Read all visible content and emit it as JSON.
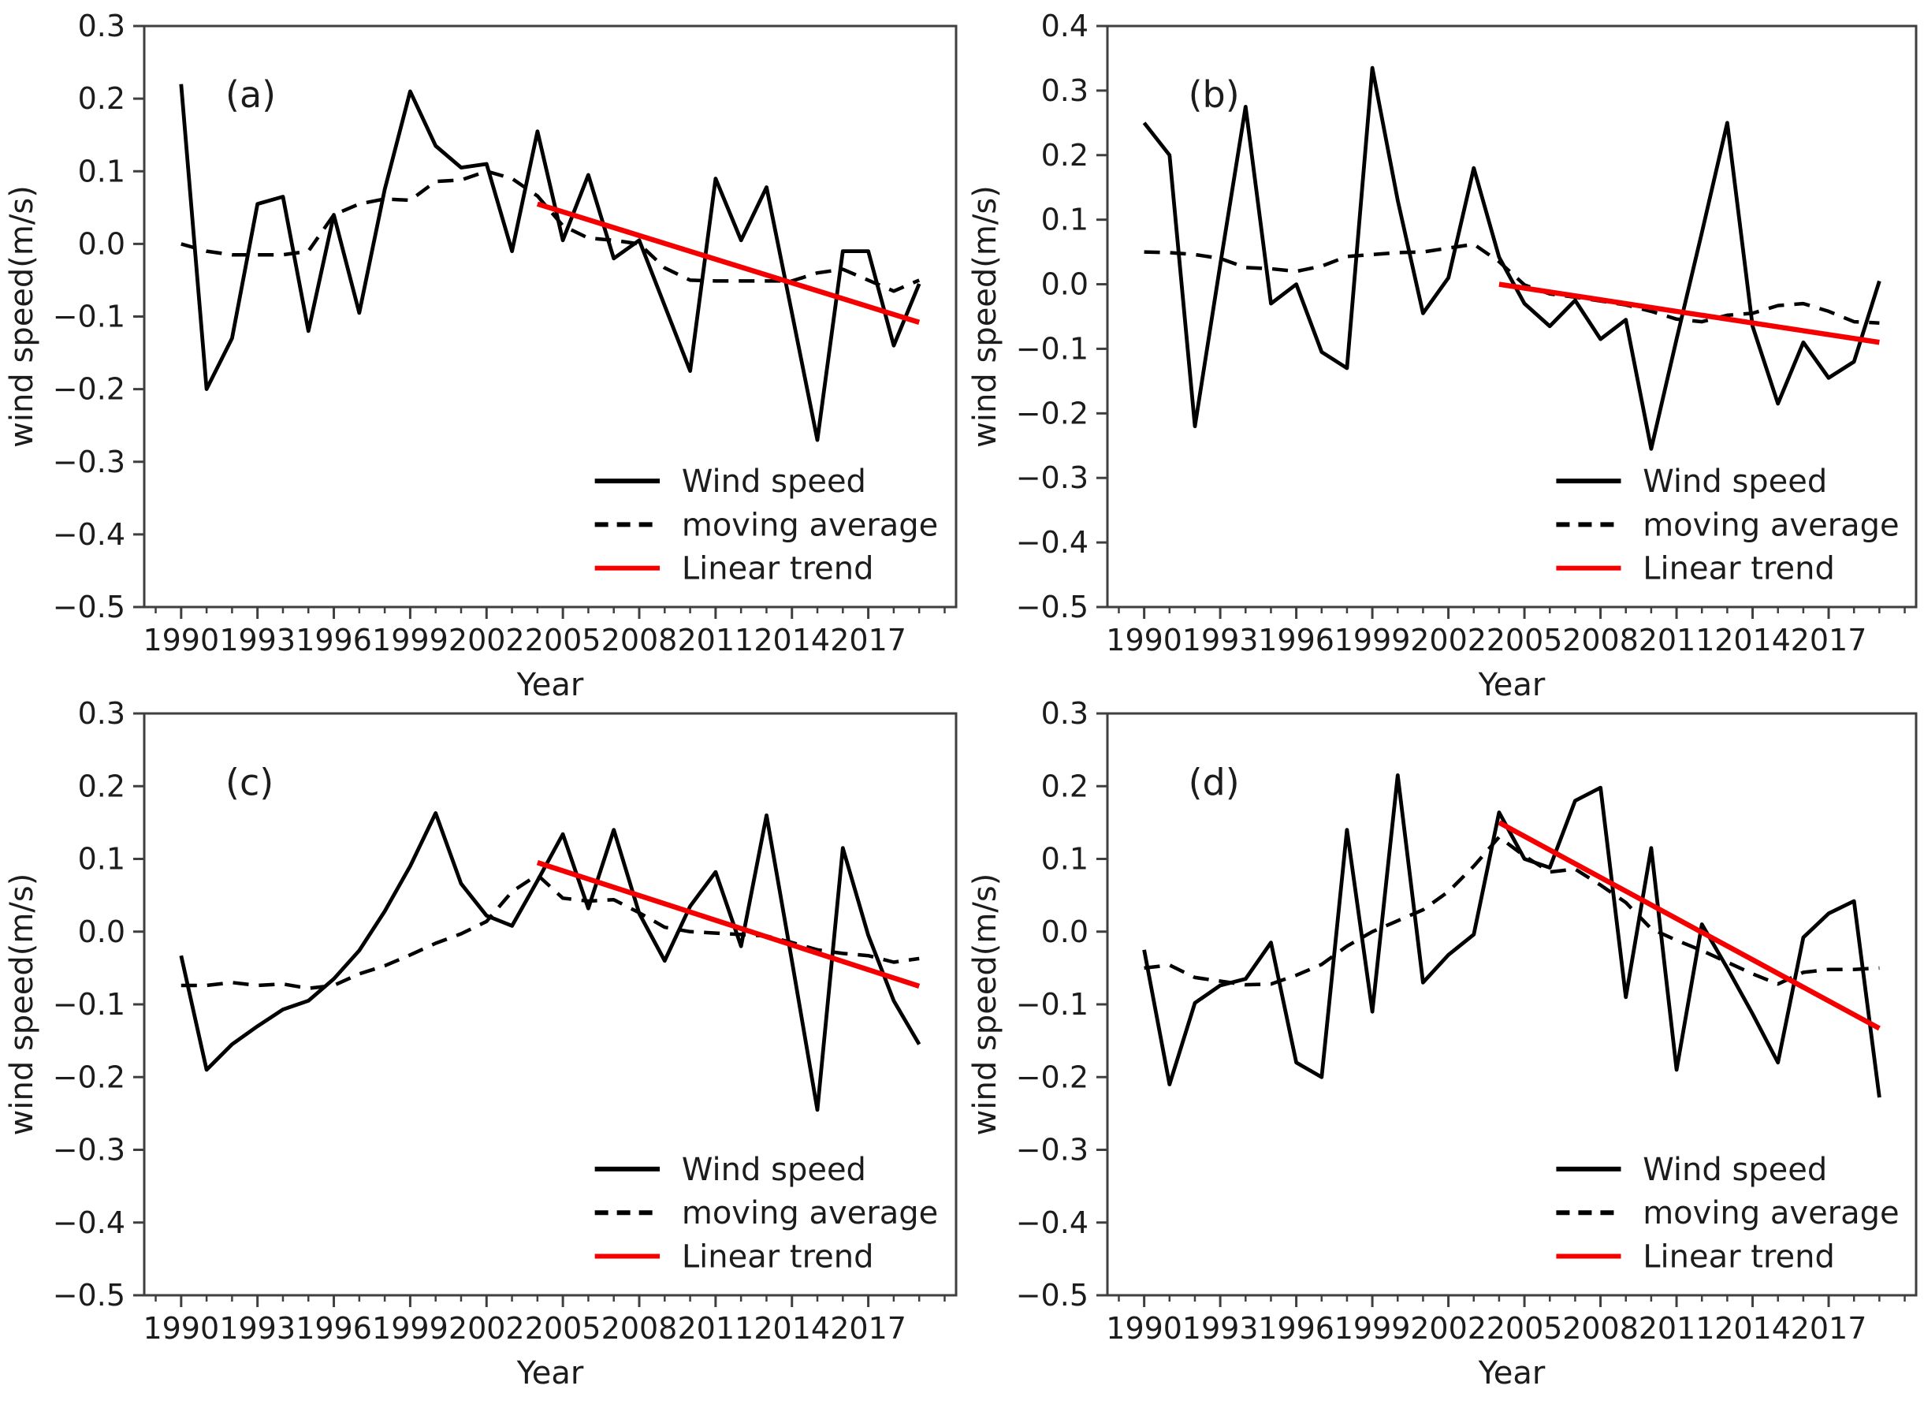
{
  "figure": {
    "xlabel": "Year",
    "ylabel": "wind speed(m/s)",
    "background": "#ffffff",
    "line_color": "#000000",
    "trend_color": "#f40000",
    "spine_color": "#3f3f3f"
  },
  "legend": {
    "items": [
      {
        "label": "Wind speed",
        "style": "solid",
        "color": "#000000"
      },
      {
        "label": "moving average",
        "style": "dashed",
        "color": "#000000"
      },
      {
        "label": "Linear trend",
        "style": "solid",
        "color": "#f40000"
      }
    ],
    "position": "lower right"
  },
  "years": [
    1990,
    1991,
    1992,
    1993,
    1994,
    1995,
    1996,
    1997,
    1998,
    1999,
    2000,
    2001,
    2002,
    2003,
    2004,
    2005,
    2006,
    2007,
    2008,
    2009,
    2010,
    2011,
    2012,
    2013,
    2014,
    2015,
    2016,
    2017,
    2018,
    2019
  ],
  "chart_data": [
    {
      "id": "a",
      "panel_label": "(a)",
      "type": "line",
      "xlabel": "Year",
      "ylabel": "wind speed(m/s)",
      "ylim": [
        -0.5,
        0.3
      ],
      "yticks": [
        0.3,
        0.2,
        0.1,
        0.0,
        -0.1,
        -0.2,
        -0.3,
        -0.4,
        -0.5
      ],
      "yticklabels": [
        "0.3",
        "0.2",
        "0.1",
        "0.0",
        "−0.1",
        "−0.2",
        "−0.3",
        "−0.4",
        "−0.5"
      ],
      "xticks": [
        1990,
        1993,
        1996,
        1999,
        2002,
        2005,
        2008,
        2011,
        2014,
        2017
      ],
      "xticklabels": [
        "1990",
        "1993",
        "1996",
        "1999",
        "2002",
        "2005",
        "2008",
        "2011",
        "2014",
        "2017"
      ],
      "series": [
        {
          "name": "Wind speed",
          "values": [
            0.22,
            -0.2,
            -0.13,
            0.055,
            0.065,
            -0.12,
            0.04,
            -0.095,
            0.075,
            0.21,
            0.135,
            0.105,
            0.11,
            -0.01,
            0.155,
            0.005,
            0.095,
            -0.02,
            0.005,
            -0.085,
            -0.175,
            0.09,
            0.005,
            0.078,
            -0.095,
            -0.27,
            -0.01,
            -0.01,
            -0.14,
            -0.055
          ]
        },
        {
          "name": "moving average",
          "values": [
            0.0,
            -0.01,
            -0.015,
            -0.015,
            -0.015,
            -0.01,
            0.04,
            0.055,
            0.062,
            0.06,
            0.086,
            0.088,
            0.1,
            0.09,
            0.066,
            0.025,
            0.008,
            0.005,
            0.0,
            -0.033,
            -0.05,
            -0.051,
            -0.051,
            -0.051,
            -0.051,
            -0.04,
            -0.035,
            -0.05,
            -0.065,
            -0.05
          ]
        },
        {
          "name": "Linear trend",
          "x": [
            2004,
            2019
          ],
          "values": [
            0.055,
            -0.108
          ]
        }
      ]
    },
    {
      "id": "b",
      "panel_label": "(b)",
      "type": "line",
      "xlabel": "Year",
      "ylabel": "wind speed(m/s)",
      "ylim": [
        -0.5,
        0.4
      ],
      "yticks": [
        0.4,
        0.3,
        0.2,
        0.1,
        0.0,
        -0.1,
        -0.2,
        -0.3,
        -0.4,
        -0.5
      ],
      "yticklabels": [
        "0.4",
        "0.3",
        "0.2",
        "0.1",
        "0.0",
        "−0.1",
        "−0.2",
        "−0.3",
        "−0.4",
        "−0.5"
      ],
      "xticks": [
        1990,
        1993,
        1996,
        1999,
        2002,
        2005,
        2008,
        2011,
        2014,
        2017
      ],
      "xticklabels": [
        "1990",
        "1993",
        "1996",
        "1999",
        "2002",
        "2005",
        "2008",
        "2011",
        "2014",
        "2017"
      ],
      "series": [
        {
          "name": "Wind speed",
          "values": [
            0.25,
            0.2,
            -0.22,
            0.03,
            0.275,
            -0.03,
            0.0,
            -0.105,
            -0.13,
            0.335,
            0.13,
            -0.045,
            0.01,
            0.18,
            0.042,
            -0.03,
            -0.065,
            -0.025,
            -0.085,
            -0.055,
            -0.255,
            -0.085,
            0.08,
            0.25,
            -0.065,
            -0.185,
            -0.09,
            -0.145,
            -0.12,
            0.005
          ]
        },
        {
          "name": "moving average",
          "values": [
            0.05,
            0.049,
            0.046,
            0.04,
            0.026,
            0.024,
            0.02,
            0.028,
            0.043,
            0.046,
            0.049,
            0.05,
            0.056,
            0.062,
            0.035,
            -0.001,
            -0.015,
            -0.02,
            -0.026,
            -0.032,
            -0.042,
            -0.054,
            -0.058,
            -0.048,
            -0.045,
            -0.033,
            -0.03,
            -0.042,
            -0.058,
            -0.06
          ]
        },
        {
          "name": "Linear trend",
          "x": [
            2004,
            2019
          ],
          "values": [
            0.0,
            -0.09
          ]
        }
      ]
    },
    {
      "id": "c",
      "panel_label": "(c)",
      "type": "line",
      "xlabel": "Year",
      "ylabel": "wind speed(m/s)",
      "ylim": [
        -0.5,
        0.3
      ],
      "yticks": [
        0.3,
        0.2,
        0.1,
        0.0,
        -0.1,
        -0.2,
        -0.3,
        -0.4,
        -0.5
      ],
      "yticklabels": [
        "0.3",
        "0.2",
        "0.1",
        "0.0",
        "−0.1",
        "−0.2",
        "−0.3",
        "−0.4",
        "−0.5"
      ],
      "xticks": [
        1990,
        1993,
        1996,
        1999,
        2002,
        2005,
        2008,
        2011,
        2014,
        2017
      ],
      "xticklabels": [
        "1990",
        "1993",
        "1996",
        "1999",
        "2002",
        "2005",
        "2008",
        "2011",
        "2014",
        "2017"
      ],
      "series": [
        {
          "name": "Wind speed",
          "values": [
            -0.033,
            -0.19,
            -0.155,
            -0.13,
            -0.107,
            -0.095,
            -0.065,
            -0.026,
            0.028,
            0.09,
            0.163,
            0.066,
            0.022,
            0.008,
            0.07,
            0.134,
            0.032,
            0.14,
            0.025,
            -0.04,
            0.035,
            0.082,
            -0.02,
            0.16,
            -0.04,
            -0.245,
            0.115,
            -0.005,
            -0.095,
            -0.155
          ]
        },
        {
          "name": "moving average",
          "values": [
            -0.074,
            -0.074,
            -0.07,
            -0.074,
            -0.072,
            -0.078,
            -0.074,
            -0.058,
            -0.047,
            -0.032,
            -0.016,
            -0.003,
            0.014,
            0.055,
            0.078,
            0.046,
            0.042,
            0.044,
            0.026,
            0.006,
            0.0,
            -0.002,
            -0.004,
            -0.006,
            -0.015,
            -0.025,
            -0.03,
            -0.033,
            -0.042,
            -0.037
          ]
        },
        {
          "name": "Linear trend",
          "x": [
            2004,
            2019
          ],
          "values": [
            0.095,
            -0.075
          ]
        }
      ]
    },
    {
      "id": "d",
      "panel_label": "(d)",
      "type": "line",
      "xlabel": "Year",
      "ylabel": "wind speed(m/s)",
      "ylim": [
        -0.5,
        0.3
      ],
      "yticks": [
        0.3,
        0.2,
        0.1,
        0.0,
        -0.1,
        -0.2,
        -0.3,
        -0.4,
        -0.5
      ],
      "yticklabels": [
        "0.3",
        "0.2",
        "0.1",
        "0.0",
        "−0.1",
        "−0.2",
        "−0.3",
        "−0.4",
        "−0.5"
      ],
      "xticks": [
        1990,
        1993,
        1996,
        1999,
        2002,
        2005,
        2008,
        2011,
        2014,
        2017
      ],
      "xticklabels": [
        "1990",
        "1993",
        "1996",
        "1999",
        "2002",
        "2005",
        "2008",
        "2011",
        "2014",
        "2017"
      ],
      "series": [
        {
          "name": "Wind speed",
          "values": [
            -0.025,
            -0.21,
            -0.098,
            -0.074,
            -0.065,
            -0.015,
            -0.18,
            -0.2,
            0.14,
            -0.11,
            0.215,
            -0.07,
            -0.032,
            -0.004,
            0.164,
            0.1,
            0.088,
            0.18,
            0.198,
            -0.09,
            0.115,
            -0.19,
            0.01,
            -0.05,
            -0.113,
            -0.18,
            -0.008,
            0.025,
            0.042,
            -0.228
          ]
        },
        {
          "name": "moving average",
          "values": [
            -0.05,
            -0.046,
            -0.063,
            -0.068,
            -0.073,
            -0.072,
            -0.06,
            -0.045,
            -0.02,
            0.0,
            0.015,
            0.03,
            0.055,
            0.09,
            0.13,
            0.104,
            0.082,
            0.086,
            0.064,
            0.04,
            0.004,
            -0.012,
            -0.026,
            -0.042,
            -0.058,
            -0.072,
            -0.056,
            -0.052,
            -0.052,
            -0.05
          ]
        },
        {
          "name": "Linear trend",
          "x": [
            2004,
            2019
          ],
          "values": [
            0.15,
            -0.133
          ]
        }
      ]
    }
  ]
}
